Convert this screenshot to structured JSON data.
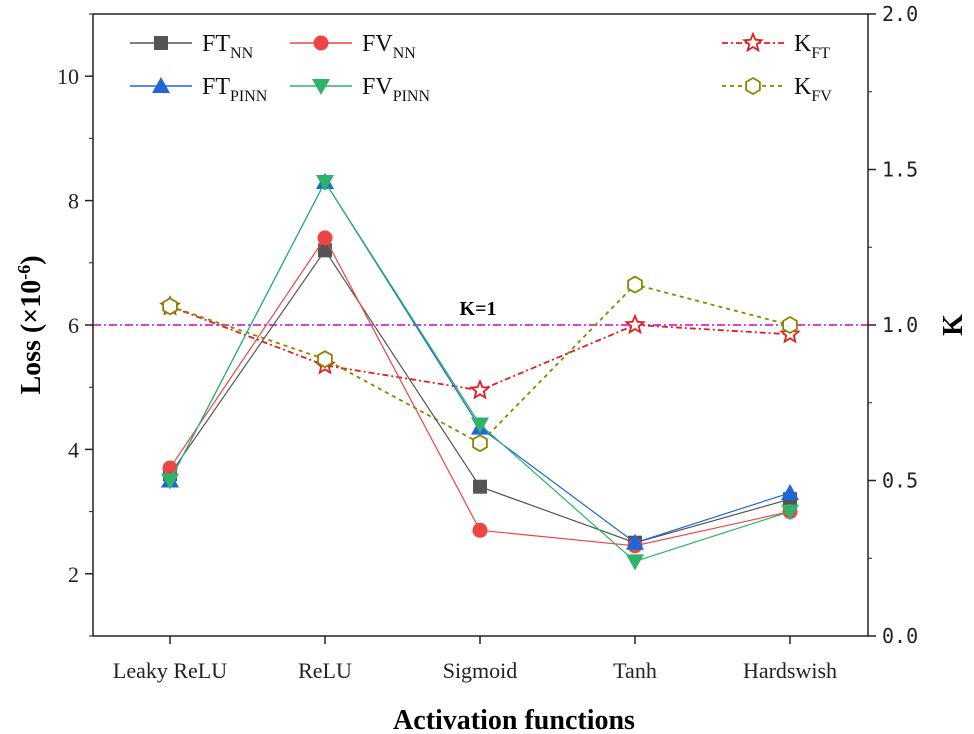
{
  "chart_data": {
    "type": "line",
    "categories": [
      "Leaky ReLU",
      "ReLU",
      "Sigmoid",
      "Tanh",
      "Hardswish"
    ],
    "xlabel": "Activation functions",
    "ylabel": {
      "main": "Loss (×10",
      "sup": "-6",
      "end": ")"
    },
    "ylabel_right": "K",
    "ylim": [
      1,
      11
    ],
    "ylim_right": [
      0,
      2
    ],
    "yticks": [
      "2",
      "4",
      "6",
      "8",
      "10"
    ],
    "yticks_right": [
      "0.0",
      "0.5",
      "1.0",
      "1.5",
      "2.0"
    ],
    "series": [
      {
        "name": "FT",
        "sub": "NN",
        "axis": "left",
        "marker": "square",
        "color": "#555555",
        "values": [
          3.6,
          7.2,
          3.4,
          2.5,
          3.2
        ]
      },
      {
        "name": "FV",
        "sub": "NN",
        "axis": "left",
        "marker": "circle",
        "color": "#ee4444",
        "values": [
          3.7,
          7.4,
          2.7,
          2.45,
          3.0
        ]
      },
      {
        "name": "FT",
        "sub": "PINN",
        "axis": "left",
        "marker": "triangle-up",
        "color": "#1f66d9",
        "values": [
          3.5,
          8.3,
          4.35,
          2.5,
          3.3
        ]
      },
      {
        "name": "FV",
        "sub": "PINN",
        "axis": "left",
        "marker": "triangle-down",
        "color": "#2db36a",
        "values": [
          3.5,
          8.3,
          4.4,
          2.2,
          3.0
        ]
      },
      {
        "name": "K",
        "sub": "FT",
        "axis": "right",
        "marker": "star",
        "color": "#e02020",
        "dash": "6,3,2,3",
        "values": [
          1.06,
          0.87,
          0.79,
          1.0,
          0.97
        ]
      },
      {
        "name": "K",
        "sub": "FV",
        "axis": "right",
        "marker": "hexagon",
        "color": "#888800",
        "dash": "4,4",
        "values": [
          1.06,
          0.89,
          0.62,
          1.13,
          1.0
        ]
      }
    ],
    "reference_line": {
      "label": "K=1",
      "value": 1.0,
      "axis": "right",
      "color": "#dd22dd"
    }
  }
}
